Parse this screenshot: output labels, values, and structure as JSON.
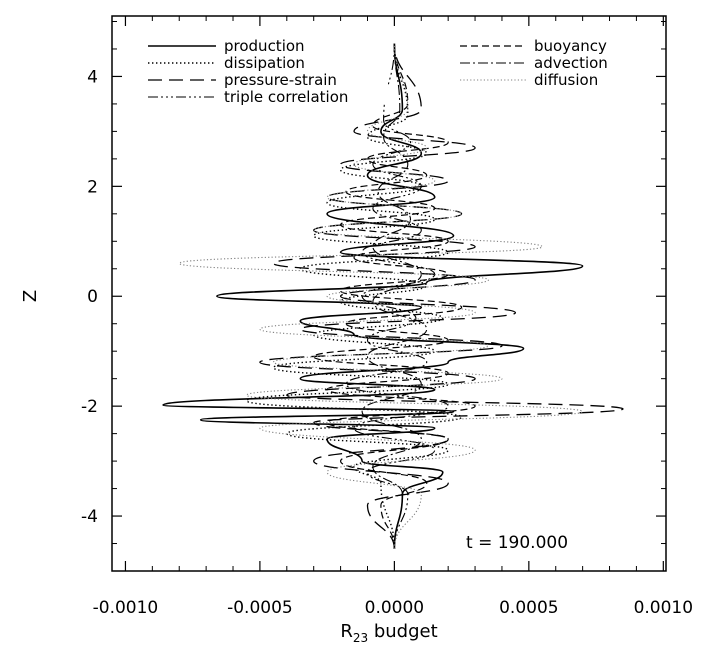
{
  "chart_data": {
    "type": "line",
    "title": "",
    "xlabel": "R",
    "xlabel_sub": "23",
    "xlabel_suffix": " budget",
    "ylabel": "Z",
    "xlim": [
      -0.00105,
      0.00101
    ],
    "ylim": [
      -5.0,
      5.1
    ],
    "xticks": [
      -0.001,
      -0.0005,
      0.0,
      0.0005,
      0.001
    ],
    "xtick_labels": [
      "-0.0010",
      "-0.0005",
      "0.0000",
      "0.0005",
      "0.0010"
    ],
    "yticks": [
      -4,
      -2,
      0,
      2,
      4
    ],
    "ytick_labels": [
      "-4",
      "-2",
      "0",
      "2",
      "4"
    ],
    "annotation": "t = 190.000",
    "grid": false,
    "legend_placement": "top",
    "series": [
      {
        "name": "production",
        "dash": "solid",
        "color": "#000000",
        "width": 1.6,
        "z": [
          -4.6,
          -3.6,
          -3.2,
          -3.0,
          -2.6,
          -2.4,
          -2.25,
          -2.1,
          -1.98,
          -1.7,
          -1.5,
          -1.2,
          -0.95,
          -0.7,
          -0.45,
          -0.2,
          0.0,
          0.25,
          0.55,
          0.8,
          1.1,
          1.5,
          1.8,
          2.2,
          2.6,
          3.0,
          3.4,
          4.6
        ],
        "v": [
          0.0,
          3e-05,
          0.00018,
          -0.00012,
          -0.00025,
          0.00015,
          -0.00072,
          0.00022,
          -0.00086,
          0.00015,
          -0.00035,
          0.0002,
          0.00048,
          -0.00015,
          -0.00035,
          0.0001,
          -0.00066,
          0.00012,
          0.0007,
          -0.0002,
          0.00022,
          -0.00025,
          0.00015,
          -0.0001,
          0.0001,
          -5e-05,
          3e-05,
          0.0
        ]
      },
      {
        "name": "dissipation",
        "dash": "1.4,2.6",
        "color": "#000000",
        "width": 1.4,
        "z": [
          -4.6,
          -3.4,
          -3.1,
          -2.8,
          -2.5,
          -2.2,
          -1.9,
          -1.6,
          -1.3,
          -1.0,
          -0.7,
          -0.4,
          -0.1,
          0.2,
          0.5,
          0.8,
          1.1,
          1.4,
          1.7,
          2.0,
          2.3,
          2.6,
          2.9,
          3.3,
          4.6
        ],
        "v": [
          0.0,
          -5e-05,
          -0.00015,
          0.0002,
          -0.0004,
          0.00025,
          -0.00055,
          0.0002,
          -0.00045,
          0.00015,
          -0.0003,
          0.00018,
          -0.0002,
          0.00012,
          -0.00035,
          0.0002,
          -0.0003,
          0.00015,
          -0.00025,
          0.0001,
          -0.0002,
          0.00012,
          -0.0001,
          5e-05,
          0.0
        ]
      },
      {
        "name": "pressure-strain",
        "dash": "14,7",
        "color": "#000000",
        "width": 1.3,
        "z": [
          -4.6,
          -3.8,
          -3.4,
          -3.0,
          -2.6,
          -2.3,
          -2.05,
          -1.8,
          -1.5,
          -1.2,
          -0.9,
          -0.6,
          -0.3,
          0.0,
          0.3,
          0.6,
          0.9,
          1.2,
          1.5,
          1.8,
          2.1,
          2.4,
          2.7,
          3.0,
          3.4,
          4.6
        ],
        "v": [
          0.0,
          -0.0001,
          0.0002,
          -0.0003,
          0.0002,
          -0.0003,
          0.00085,
          -0.0004,
          0.0003,
          -0.0005,
          0.0004,
          -0.00035,
          0.00045,
          -0.0002,
          0.0003,
          -0.00045,
          0.0003,
          -0.0003,
          0.00025,
          -0.00025,
          0.0002,
          -0.0002,
          0.0003,
          -0.00015,
          0.0001,
          0.0
        ]
      },
      {
        "name": "triple correlation",
        "dash": "10,3,2,3,2,3,2,3",
        "color": "#000000",
        "width": 1.1,
        "z": [
          -4.6,
          -3.6,
          -3.2,
          -2.8,
          -2.4,
          -2.0,
          -1.6,
          -1.2,
          -0.8,
          -0.4,
          0.0,
          0.4,
          0.8,
          1.2,
          1.6,
          2.0,
          2.4,
          2.8,
          3.2,
          4.6
        ],
        "v": [
          0.0,
          5e-05,
          -0.0001,
          0.00015,
          -0.00015,
          0.0002,
          -0.00018,
          0.00012,
          -0.0001,
          8e-05,
          -0.00012,
          0.00015,
          -0.00012,
          0.0001,
          -8e-05,
          0.0001,
          -8e-05,
          6e-05,
          -4e-05,
          0.0
        ]
      },
      {
        "name": "buoyancy",
        "dash": "7,4",
        "color": "#000000",
        "width": 1.2,
        "z": [
          -4.6,
          -3.8,
          -3.4,
          -3.0,
          -2.6,
          -2.3,
          -2.0,
          -1.7,
          -1.4,
          -1.1,
          -0.8,
          -0.5,
          -0.2,
          0.1,
          0.4,
          0.7,
          1.0,
          1.3,
          1.6,
          1.9,
          2.2,
          2.5,
          2.8,
          3.1,
          3.5,
          4.6
        ],
        "v": [
          0.0,
          -5e-05,
          0.00012,
          -0.0002,
          0.0002,
          -0.00025,
          0.0003,
          -0.00025,
          0.0002,
          -0.0003,
          0.0002,
          -0.00018,
          0.00025,
          -0.0002,
          0.0002,
          -0.00015,
          0.0002,
          -0.0002,
          0.00015,
          -0.00018,
          0.00012,
          -0.0001,
          0.0002,
          -8e-05,
          5e-05,
          0.0
        ]
      },
      {
        "name": "advection",
        "dash": "10,3,2,3",
        "color": "#000000",
        "width": 1.1,
        "z": [
          -4.6,
          -3.6,
          -3.1,
          -2.6,
          -2.1,
          -1.6,
          -1.1,
          -0.6,
          -0.1,
          0.4,
          0.9,
          1.4,
          1.9,
          2.4,
          2.9,
          3.4,
          4.6
        ],
        "v": [
          0.0,
          3e-05,
          -8e-05,
          0.0001,
          -0.00012,
          0.0001,
          -0.0001,
          0.00012,
          -8e-05,
          0.0001,
          -8e-05,
          6e-05,
          -6e-05,
          5e-05,
          -4e-05,
          2e-05,
          0.0
        ]
      },
      {
        "name": "diffusion",
        "dash": "1.2,2.2",
        "color": "#808080",
        "width": 1.1,
        "z": [
          -4.6,
          -3.6,
          -3.2,
          -2.8,
          -2.4,
          -2.1,
          -1.8,
          -1.5,
          -1.2,
          -0.9,
          -0.6,
          -0.3,
          0.0,
          0.3,
          0.6,
          0.9,
          1.2,
          1.5,
          1.8,
          2.1,
          2.4,
          2.7,
          3.0,
          3.4,
          4.6
        ],
        "v": [
          0.0,
          0.0001,
          -0.00025,
          0.0003,
          -0.0005,
          0.0007,
          -0.00055,
          0.0004,
          -0.00045,
          0.00035,
          -0.0005,
          0.0003,
          -0.00025,
          0.00035,
          -0.0008,
          0.00055,
          -0.0003,
          0.00025,
          -0.00025,
          0.00015,
          -0.00015,
          0.00012,
          -0.0001,
          5e-05,
          0.0
        ]
      }
    ]
  }
}
